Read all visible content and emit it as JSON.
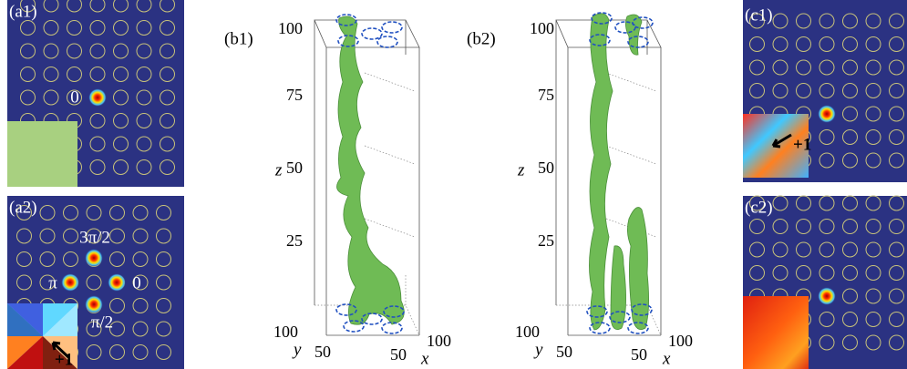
{
  "panels": {
    "a1": {
      "label": "(a1)",
      "charge": "0"
    },
    "a2": {
      "label": "(a2)",
      "phases": [
        "3π/2",
        "π",
        "0",
        "π/2"
      ],
      "winding": "+1"
    },
    "b1": {
      "label": "(b1)",
      "z_ticks": [
        100,
        75,
        50,
        25
      ],
      "z_label": "z",
      "y_tick_max": 100,
      "y_tick_mid": 50,
      "y_label": "y",
      "x_tick_mid": 50,
      "x_tick_max": 100,
      "x_label": "x"
    },
    "b2": {
      "label": "(b2)",
      "z_ticks": [
        100,
        75,
        50,
        25
      ],
      "z_label": "z",
      "y_tick_max": 100,
      "y_tick_mid": 50,
      "y_label": "y",
      "x_tick_mid": 50,
      "x_tick_max": 100,
      "x_label": "x"
    },
    "c1": {
      "label": "(c1)",
      "winding": "+1"
    },
    "c2": {
      "label": "(c2)"
    }
  }
}
